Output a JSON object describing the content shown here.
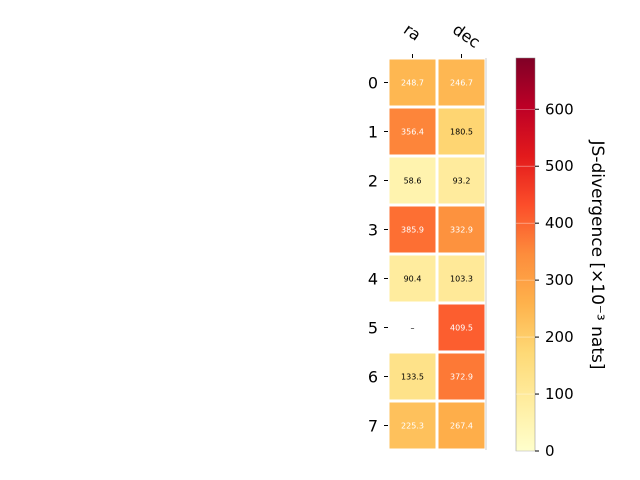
{
  "chart_data": {
    "type": "heatmap",
    "columns": [
      "ra",
      "dec"
    ],
    "rows": [
      "0",
      "1",
      "2",
      "3",
      "4",
      "5",
      "6",
      "7"
    ],
    "values": [
      [
        248.7,
        246.7
      ],
      [
        356.4,
        180.5
      ],
      [
        58.6,
        93.2
      ],
      [
        385.9,
        332.9
      ],
      [
        90.4,
        103.3
      ],
      [
        null,
        409.5
      ],
      [
        133.5,
        372.9
      ],
      [
        225.3,
        267.4
      ]
    ],
    "cell_text": [
      [
        "248.7",
        "246.7"
      ],
      [
        "356.4",
        "180.5"
      ],
      [
        "58.6",
        "93.2"
      ],
      [
        "385.9",
        "332.9"
      ],
      [
        "90.4",
        "103.3"
      ],
      [
        "–",
        "409.5"
      ],
      [
        "133.5",
        "372.9"
      ],
      [
        "225.3",
        "267.4"
      ]
    ],
    "colorbar": {
      "label": "JS-divergence [×10⁻³ nats]",
      "min": 0,
      "max": 690,
      "ticks": [
        "0",
        "100",
        "200",
        "300",
        "400",
        "500",
        "600"
      ],
      "colormap": "YlOrRd"
    }
  }
}
